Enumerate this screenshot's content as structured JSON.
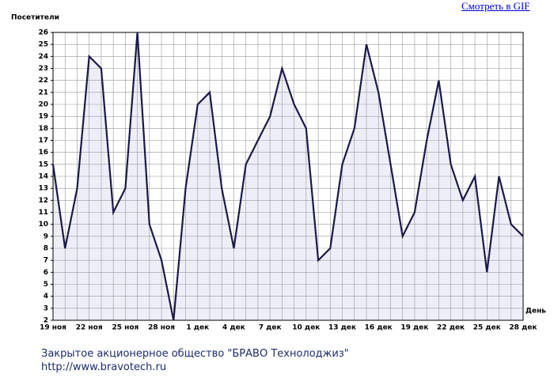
{
  "link": "Смотреть в GIF",
  "chart_data": {
    "type": "area",
    "y_label": "Посетители",
    "x_label": "День",
    "categories": [
      "19 ноя",
      null,
      null,
      "22 ноя",
      null,
      null,
      "25 ноя",
      null,
      null,
      "28 ноя",
      null,
      null,
      "1 дек",
      null,
      null,
      "4 дек",
      null,
      null,
      "7 дек",
      null,
      null,
      "10 дек",
      null,
      null,
      "13 дек",
      null,
      null,
      "16 дек",
      null,
      null,
      "19 дек",
      null,
      null,
      "22 дек",
      null,
      null,
      "25 дек",
      null,
      null,
      "28 дек"
    ],
    "series": [
      {
        "name": "Посетители",
        "color": "#1a1a4a",
        "fill": "#eeeef8",
        "values": [
          15,
          8,
          13,
          24,
          23,
          11,
          13,
          26,
          10,
          7,
          2,
          13,
          20,
          21,
          13,
          8,
          15,
          17,
          19,
          23,
          20,
          18,
          7,
          8,
          15,
          18,
          25,
          21,
          15,
          9,
          11,
          17,
          22,
          15,
          12,
          14,
          6,
          14,
          10,
          9
        ]
      }
    ],
    "ylim": [
      2,
      26
    ],
    "yticks": [
      2,
      3,
      4,
      5,
      6,
      7,
      8,
      9,
      10,
      11,
      12,
      13,
      14,
      15,
      16,
      17,
      18,
      19,
      20,
      21,
      22,
      23,
      24,
      25,
      26
    ],
    "grid": true
  },
  "footer": {
    "company": "Закрытое акционерное общество \"БРАВО Технолоджиз\"",
    "url": "http://www.bravotech.ru"
  }
}
